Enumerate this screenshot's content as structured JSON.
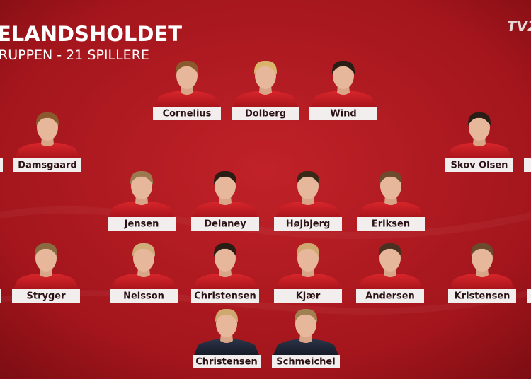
{
  "header": {
    "title": "ELANDSHOLDET",
    "subtitle": "RUPPEN - 21 SPILLERE",
    "logo": "TV2"
  },
  "players": [
    {
      "name": "Cornelius"
    },
    {
      "name": "Dolberg"
    },
    {
      "name": "Wind"
    },
    {
      "name": "Damsgaard"
    },
    {
      "name": "Skov Olsen"
    },
    {
      "name": "Jensen"
    },
    {
      "name": "Delaney"
    },
    {
      "name": "Højbjerg"
    },
    {
      "name": "Eriksen"
    },
    {
      "name": "Stryger"
    },
    {
      "name": "Nelsson"
    },
    {
      "name": "Christensen"
    },
    {
      "name": "Kjær"
    },
    {
      "name": "Andersen"
    },
    {
      "name": "Kristensen"
    },
    {
      "name": "Christensen"
    },
    {
      "name": "Schmeichel"
    }
  ]
}
